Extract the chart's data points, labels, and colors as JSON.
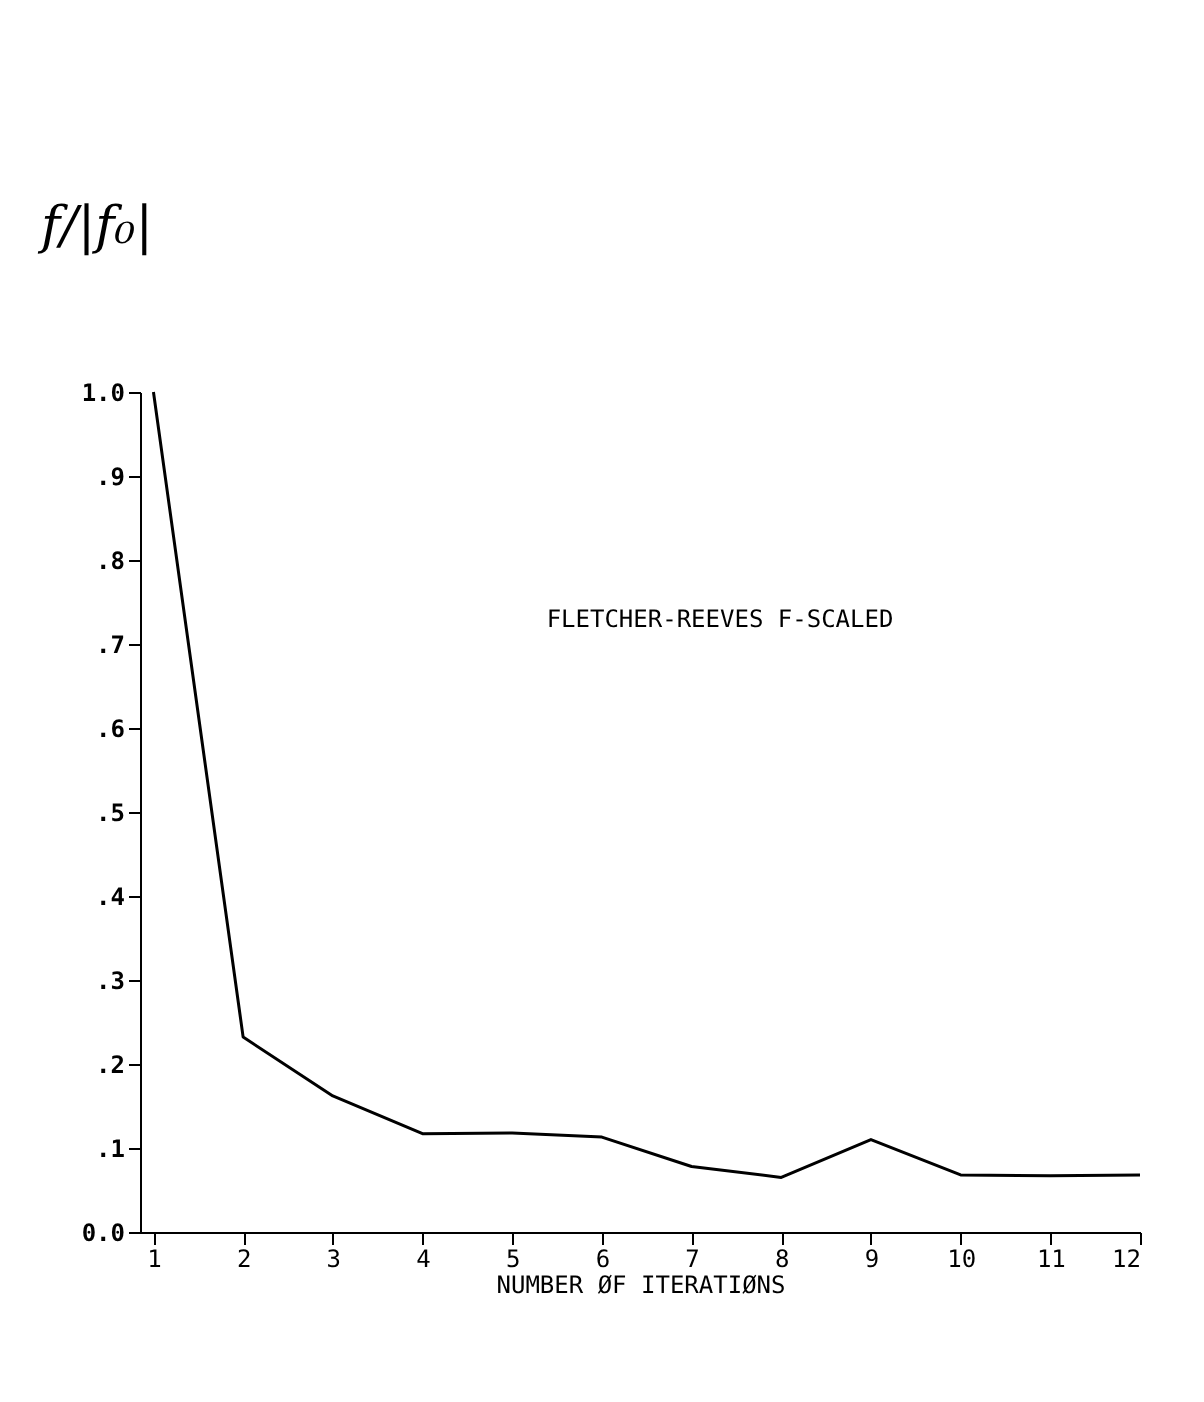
{
  "chart_data": {
    "type": "line",
    "ylabel": "f/|f₀|",
    "xlabel": "NUMBER ØF ITERATIØNS",
    "annotations": [
      "FLETCHER-REEVES F-SCALED"
    ],
    "x": [
      1,
      2,
      3,
      4,
      5,
      6,
      7,
      8,
      9,
      10,
      11,
      12
    ],
    "series": [
      {
        "color": "#000000",
        "values": [
          1.0,
          0.232,
          0.162,
          0.117,
          0.118,
          0.113,
          0.078,
          0.065,
          0.11,
          0.068,
          0.067,
          0.068
        ]
      }
    ],
    "xlim": [
      0.85,
      12
    ],
    "xticks": [
      1,
      2,
      3,
      4,
      5,
      6,
      7,
      8,
      9,
      10,
      11,
      12
    ],
    "ylim": [
      0,
      1.0
    ],
    "yticks": [
      {
        "value": 0,
        "label": "0.0"
      },
      {
        "value": 0.1,
        "label": ".1"
      },
      {
        "value": 0.2,
        "label": ".2"
      },
      {
        "value": 0.3,
        "label": ".3"
      },
      {
        "value": 0.4,
        "label": ".4"
      },
      {
        "value": 0.5,
        "label": ".5"
      },
      {
        "value": 0.6,
        "label": ".6"
      },
      {
        "value": 0.7,
        "label": ".7"
      },
      {
        "value": 0.8,
        "label": ".8"
      },
      {
        "value": 0.9,
        "label": ".9"
      },
      {
        "value": 1.0,
        "label": "1.0"
      }
    ],
    "grid": false,
    "marker": "none",
    "line_style": "solid"
  }
}
